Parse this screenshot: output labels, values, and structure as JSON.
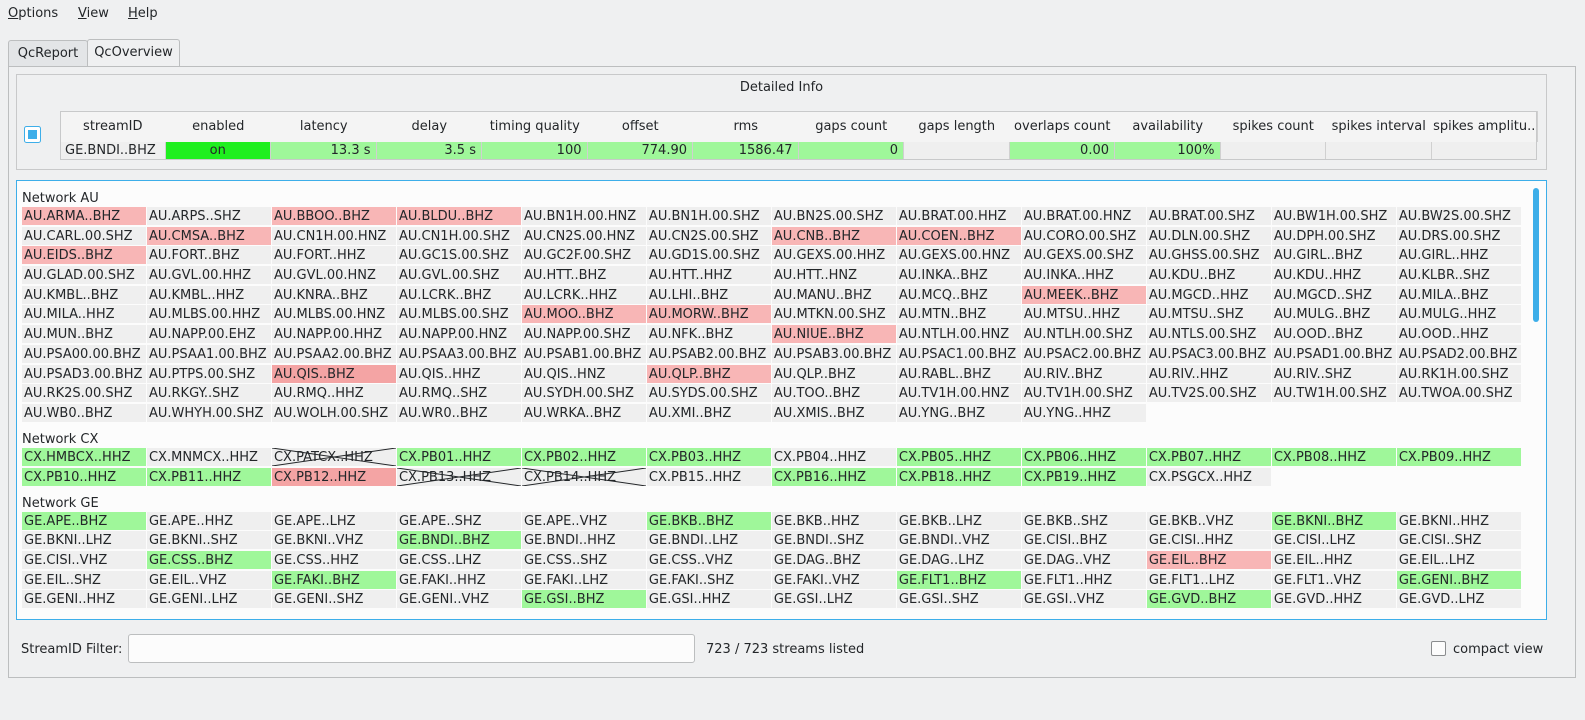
{
  "menu": [
    "Options",
    "View",
    "Help"
  ],
  "tabs": [
    "QcReport",
    "QcOverview"
  ],
  "detail": {
    "title": "Detailed Info",
    "columns": [
      "streamID",
      "enabled",
      "latency",
      "delay",
      "timing quality",
      "offset",
      "rms",
      "gaps count",
      "gaps length",
      "overlaps count",
      "availability",
      "spikes count",
      "spikes interval",
      "spikes amplitu.."
    ],
    "row": [
      "GE.BNDI..BHZ",
      "on",
      "13.3 s",
      "3.5 s",
      "100",
      "774.90",
      "1586.47",
      "0",
      "",
      "0.00",
      "100%",
      "",
      "",
      ""
    ],
    "colors": [
      "#efefef",
      "#1fef1f",
      "#9ff79a",
      "#9ff79a",
      "#9ff79a",
      "#9ff79a",
      "#9ff79a",
      "#9ff79a",
      "#efefef",
      "#9ff79a",
      "#9ff79a",
      "#efefef",
      "#efefef",
      "#efefef"
    ]
  },
  "networks": [
    {
      "title": "Network AU",
      "streams": [
        {
          "id": "AU.ARMA..BHZ",
          "color": "#f8b6b6"
        },
        "AU.ARPS..SHZ",
        {
          "id": "AU.BBOO..BHZ",
          "color": "#f8b6b6"
        },
        {
          "id": "AU.BLDU..BHZ",
          "color": "#f8b6b6"
        },
        "AU.BN1H.00.HNZ",
        "AU.BN1H.00.SHZ",
        "AU.BN2S.00.SHZ",
        "AU.BRAT.00.HHZ",
        "AU.BRAT.00.HNZ",
        "AU.BRAT.00.SHZ",
        "AU.BW1H.00.SHZ",
        "AU.BW2S.00.SHZ",
        "AU.CARL.00.SHZ",
        {
          "id": "AU.CMSA..BHZ",
          "color": "#f8b6b6"
        },
        "AU.CN1H.00.HNZ",
        "AU.CN1H.00.SHZ",
        "AU.CN2S.00.HNZ",
        "AU.CN2S.00.SHZ",
        {
          "id": "AU.CNB..BHZ",
          "color": "#f8b6b6"
        },
        {
          "id": "AU.COEN..BHZ",
          "color": "#f8b6b6"
        },
        "AU.CORO.00.SHZ",
        "AU.DLN.00.SHZ",
        "AU.DPH.00.SHZ",
        "AU.DRS.00.SHZ",
        {
          "id": "AU.EIDS..BHZ",
          "color": "#f8b6b6"
        },
        "AU.FORT..BHZ",
        "AU.FORT..HHZ",
        "AU.GC1S.00.SHZ",
        "AU.GC2F.00.SHZ",
        "AU.GD1S.00.SHZ",
        "AU.GEXS.00.HHZ",
        "AU.GEXS.00.HNZ",
        "AU.GEXS.00.SHZ",
        "AU.GHSS.00.SHZ",
        "AU.GIRL..BHZ",
        "AU.GIRL..HHZ",
        "AU.GLAD.00.SHZ",
        "AU.GVL.00.HHZ",
        "AU.GVL.00.HNZ",
        "AU.GVL.00.SHZ",
        "AU.HTT..BHZ",
        "AU.HTT..HHZ",
        "AU.HTT..HNZ",
        "AU.INKA..BHZ",
        "AU.INKA..HHZ",
        "AU.KDU..BHZ",
        "AU.KDU..HHZ",
        "AU.KLBR..SHZ",
        "AU.KMBL..BHZ",
        "AU.KMBL..HHZ",
        "AU.KNRA..BHZ",
        "AU.LCRK..BHZ",
        "AU.LCRK..HHZ",
        "AU.LHI..BHZ",
        "AU.MANU..BHZ",
        "AU.MCQ..BHZ",
        {
          "id": "AU.MEEK..BHZ",
          "color": "#f8b6b6"
        },
        "AU.MGCD..HHZ",
        "AU.MGCD..SHZ",
        "AU.MILA..BHZ",
        "AU.MILA..HHZ",
        "AU.MLBS.00.HHZ",
        "AU.MLBS.00.HNZ",
        "AU.MLBS.00.SHZ",
        {
          "id": "AU.MOO..BHZ",
          "color": "#f8b6b6"
        },
        {
          "id": "AU.MORW..BHZ",
          "color": "#f8b6b6"
        },
        "AU.MTKN.00.SHZ",
        "AU.MTN..BHZ",
        "AU.MTSU..HHZ",
        "AU.MTSU..SHZ",
        "AU.MULG..BHZ",
        "AU.MULG..HHZ",
        "AU.MUN..BHZ",
        "AU.NAPP.00.EHZ",
        "AU.NAPP.00.HHZ",
        "AU.NAPP.00.HNZ",
        "AU.NAPP.00.SHZ",
        "AU.NFK..BHZ",
        {
          "id": "AU.NIUE..BHZ",
          "color": "#f8b6b6"
        },
        "AU.NTLH.00.HNZ",
        "AU.NTLH.00.SHZ",
        "AU.NTLS.00.SHZ",
        "AU.OOD..BHZ",
        "AU.OOD..HHZ",
        "AU.PSA00.00.BHZ",
        "AU.PSAA1.00.BHZ",
        "AU.PSAA2.00.BHZ",
        "AU.PSAA3.00.BHZ",
        "AU.PSAB1.00.BHZ",
        "AU.PSAB2.00.BHZ",
        "AU.PSAB3.00.BHZ",
        "AU.PSAC1.00.BHZ",
        "AU.PSAC2.00.BHZ",
        "AU.PSAC3.00.BHZ",
        "AU.PSAD1.00.BHZ",
        "AU.PSAD2.00.BHZ",
        "AU.PSAD3.00.BHZ",
        "AU.PTPS.00.SHZ",
        {
          "id": "AU.QIS..BHZ",
          "color": "#f4a4a4"
        },
        "AU.QIS..HHZ",
        "AU.QIS..HNZ",
        {
          "id": "AU.QLP..BHZ",
          "color": "#f8b6b6"
        },
        "AU.QLP..BHZ",
        "AU.RABL..BHZ",
        "AU.RIV..BHZ",
        "AU.RIV..HHZ",
        "AU.RIV..SHZ",
        "AU.RK1H.00.SHZ",
        "AU.RK2S.00.SHZ",
        "AU.RKGY..SHZ",
        "AU.RMQ..HHZ",
        "AU.RMQ..SHZ",
        "AU.SYDH.00.SHZ",
        "AU.SYDS.00.SHZ",
        "AU.TOO..BHZ",
        "AU.TV1H.00.HNZ",
        "AU.TV1H.00.SHZ",
        "AU.TV2S.00.SHZ",
        "AU.TW1H.00.SHZ",
        "AU.TWOA.00.SHZ",
        "AU.WB0..BHZ",
        "AU.WHYH.00.SHZ",
        "AU.WOLH.00.SHZ",
        "AU.WR0..BHZ",
        "AU.WRKA..BHZ",
        "AU.XMI..BHZ",
        "AU.XMIS..BHZ",
        "AU.YNG..BHZ",
        "AU.YNG..HHZ"
      ]
    },
    {
      "title": "Network CX",
      "streams": [
        {
          "id": "CX.HMBCX..HHZ",
          "color": "#9ff79a"
        },
        "CX.MNMCX..HHZ",
        {
          "id": "CX.PATCX..HHZ",
          "crossed": true
        },
        {
          "id": "CX.PB01..HHZ",
          "color": "#9ff79a"
        },
        {
          "id": "CX.PB02..HHZ",
          "color": "#9ff79a"
        },
        {
          "id": "CX.PB03..HHZ",
          "color": "#9ff79a"
        },
        "CX.PB04..HHZ",
        {
          "id": "CX.PB05..HHZ",
          "color": "#9ff79a"
        },
        {
          "id": "CX.PB06..HHZ",
          "color": "#9ff79a"
        },
        {
          "id": "CX.PB07..HHZ",
          "color": "#9ff79a"
        },
        {
          "id": "CX.PB08..HHZ",
          "color": "#9ff79a"
        },
        {
          "id": "CX.PB09..HHZ",
          "color": "#9ff79a"
        },
        {
          "id": "CX.PB10..HHZ",
          "color": "#9ff79a"
        },
        {
          "id": "CX.PB11..HHZ",
          "color": "#9ff79a"
        },
        {
          "id": "CX.PB12..HHZ",
          "color": "#f4a4a4"
        },
        {
          "id": "CX.PB13..HHZ",
          "crossed": true
        },
        {
          "id": "CX.PB14..HHZ",
          "crossed": true
        },
        "CX.PB15..HHZ",
        {
          "id": "CX.PB16..HHZ",
          "color": "#9ff79a"
        },
        {
          "id": "CX.PB18..HHZ",
          "color": "#9ff79a"
        },
        {
          "id": "CX.PB19..HHZ",
          "color": "#9ff79a"
        },
        "CX.PSGCX..HHZ"
      ]
    },
    {
      "title": "Network GE",
      "streams": [
        {
          "id": "GE.APE..BHZ",
          "color": "#9ff79a"
        },
        "GE.APE..HHZ",
        "GE.APE..LHZ",
        "GE.APE..SHZ",
        "GE.APE..VHZ",
        {
          "id": "GE.BKB..BHZ",
          "color": "#9ff79a"
        },
        "GE.BKB..HHZ",
        "GE.BKB..LHZ",
        "GE.BKB..SHZ",
        "GE.BKB..VHZ",
        {
          "id": "GE.BKNI..BHZ",
          "color": "#9ff79a"
        },
        "GE.BKNI..HHZ",
        "GE.BKNI..LHZ",
        "GE.BKNI..SHZ",
        "GE.BKNI..VHZ",
        {
          "id": "GE.BNDI..BHZ",
          "color": "#9ff79a"
        },
        "GE.BNDI..HHZ",
        "GE.BNDI..LHZ",
        "GE.BNDI..SHZ",
        "GE.BNDI..VHZ",
        "GE.CISI..BHZ",
        "GE.CISI..HHZ",
        "GE.CISI..LHZ",
        "GE.CISI..SHZ",
        "GE.CISI..VHZ",
        {
          "id": "GE.CSS..BHZ",
          "color": "#9ff79a"
        },
        "GE.CSS..HHZ",
        "GE.CSS..LHZ",
        "GE.CSS..SHZ",
        "GE.CSS..VHZ",
        "GE.DAG..BHZ",
        "GE.DAG..LHZ",
        "GE.DAG..VHZ",
        {
          "id": "GE.EIL..BHZ",
          "color": "#f8b6b6"
        },
        "GE.EIL..HHZ",
        "GE.EIL..LHZ",
        "GE.EIL..SHZ",
        "GE.EIL..VHZ",
        {
          "id": "GE.FAKI..BHZ",
          "color": "#9ff79a"
        },
        "GE.FAKI..HHZ",
        "GE.FAKI..LHZ",
        "GE.FAKI..SHZ",
        "GE.FAKI..VHZ",
        {
          "id": "GE.FLT1..BHZ",
          "color": "#9ff79a"
        },
        "GE.FLT1..HHZ",
        "GE.FLT1..LHZ",
        "GE.FLT1..VHZ",
        {
          "id": "GE.GENI..BHZ",
          "color": "#9ff79a"
        },
        "GE.GENI..HHZ",
        "GE.GENI..LHZ",
        "GE.GENI..SHZ",
        "GE.GENI..VHZ",
        {
          "id": "GE.GSI..BHZ",
          "color": "#9ff79a"
        },
        "GE.GSI..HHZ",
        "GE.GSI..LHZ",
        "GE.GSI..SHZ",
        "GE.GSI..VHZ",
        {
          "id": "GE.GVD..BHZ",
          "color": "#9ff79a"
        },
        "GE.GVD..HHZ",
        "GE.GVD..LHZ"
      ]
    }
  ],
  "filter": {
    "label": "StreamID Filter:",
    "status": "723 / 723 streams listed",
    "compact": "compact view"
  }
}
